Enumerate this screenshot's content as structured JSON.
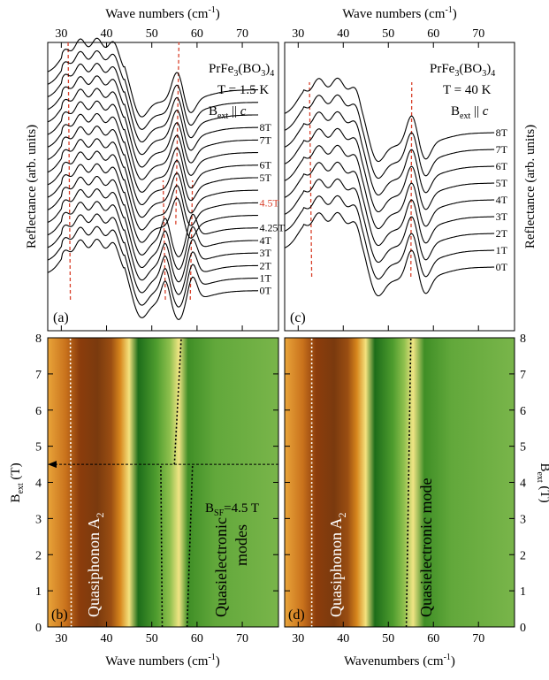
{
  "figure": {
    "xlabel_top": "Wave numbers (cm",
    "xlabel_top_sup": "-1",
    "xlabel_top_close": ")",
    "ylabel_reflectance": "Reflectance (arb. units)",
    "ylabel_field": "B",
    "ylabel_field_sub": "ext",
    "ylabel_field_unit": " (T)",
    "xlabel_bottom_left": "Wave numbers (cm",
    "xlabel_bottom_right": "Wavenumbers (cm",
    "sup_minus1": "-1",
    "close_paren": ")"
  },
  "chart_data": [
    {
      "id": "a",
      "type": "line",
      "panel_label": "(a)",
      "compound_parts": [
        "PrFe",
        "3",
        "(BO",
        "3",
        ")",
        "4"
      ],
      "temperature": "T = 1.5 K",
      "field_prefix": "B",
      "field_sub": "ext",
      "field_mid": " || ",
      "field_axis": "c",
      "xlim": [
        27,
        78
      ],
      "xticks": [
        30,
        40,
        50,
        60,
        70
      ],
      "y_ticks_visible": false,
      "ylabel": "Reflectance (arb. units)",
      "series": [
        {
          "name": "0T",
          "baseline": 0
        },
        {
          "name": "1T",
          "baseline": 1
        },
        {
          "name": "2T",
          "baseline": 2
        },
        {
          "name": "3T",
          "baseline": 3
        },
        {
          "name": "4T",
          "baseline": 4
        },
        {
          "name": "4.25T",
          "baseline": 5
        },
        {
          "name": "4.5T",
          "baseline": 6,
          "highlight": "#d9412b"
        },
        {
          "name": "5T",
          "baseline": 7
        },
        {
          "name": "6T",
          "baseline": 8
        },
        {
          "name": "7T",
          "baseline": 9
        },
        {
          "name": "8T",
          "baseline": 10
        }
      ],
      "extra_traces": 6,
      "guide_lines": [
        {
          "x_low": 32.0,
          "x_high": 31.5,
          "from_series": 0,
          "to_series": 16
        },
        {
          "x_low": 53.0,
          "x_high": 52.5,
          "from_series": 0,
          "to_series": 5
        },
        {
          "x_low": 58.5,
          "x_high": 59.0,
          "from_series": 0,
          "to_series": 5
        },
        {
          "x_low": 55.3,
          "x_high": 56.0,
          "from_series": 6,
          "to_series": 16
        }
      ]
    },
    {
      "id": "c",
      "type": "line",
      "panel_label": "(c)",
      "compound_parts": [
        "PrFe",
        "3",
        "(BO",
        "3",
        ")",
        "4"
      ],
      "temperature": "T = 40 K",
      "field_prefix": "B",
      "field_sub": "ext",
      "field_mid": " || ",
      "field_axis": "c",
      "xlim": [
        27,
        78
      ],
      "xticks": [
        30,
        40,
        50,
        60,
        70
      ],
      "y_ticks_visible": false,
      "ylabel": "Reflectance (arb. units)",
      "series": [
        {
          "name": "0T",
          "baseline": 0
        },
        {
          "name": "1T",
          "baseline": 1
        },
        {
          "name": "2T",
          "baseline": 2
        },
        {
          "name": "3T",
          "baseline": 3
        },
        {
          "name": "4T",
          "baseline": 4
        },
        {
          "name": "5T",
          "baseline": 5
        },
        {
          "name": "6T",
          "baseline": 6
        },
        {
          "name": "7T",
          "baseline": 7
        },
        {
          "name": "8T",
          "baseline": 8
        }
      ],
      "guide_lines": [
        {
          "x_low": 33.0,
          "x_high": 32.5,
          "from_series": 0,
          "to_series": 8
        },
        {
          "x_low": 55.0,
          "x_high": 55.2,
          "from_series": 0,
          "to_series": 8
        }
      ]
    },
    {
      "id": "b",
      "type": "heatmap",
      "panel_label": "(b)",
      "xlim": [
        27,
        78
      ],
      "ylim": [
        0,
        8
      ],
      "xticks": [
        30,
        40,
        50,
        60,
        70
      ],
      "yticks": [
        0,
        1,
        2,
        3,
        4,
        5,
        6,
        7,
        8
      ],
      "xlabel": "Wave numbers (cm-1)",
      "ylabel": "Bext (T)",
      "annotation_prefix": "B",
      "annotation_sub": "SF",
      "annotation_value": "=4.5 T",
      "spin_flip_field": 4.5,
      "label_phonon_main": "Quasiphonon A",
      "label_phonon_sub": "2",
      "label_electronic_1": "Quasielectronic",
      "label_electronic_2": "modes",
      "color_bands": [
        {
          "x": 27,
          "color": "#e9a43a"
        },
        {
          "x": 31,
          "color": "#c9721c"
        },
        {
          "x": 34,
          "color": "#8c3d0c"
        },
        {
          "x": 38,
          "color": "#7a3a0e"
        },
        {
          "x": 41,
          "color": "#9a4e12"
        },
        {
          "x": 43,
          "color": "#d7861c"
        },
        {
          "x": 45,
          "color": "#f4e27e"
        },
        {
          "x": 47,
          "color": "#1d6d1a"
        },
        {
          "x": 51,
          "color": "#4e9c2e"
        },
        {
          "x": 54,
          "color": "#8fc04d"
        },
        {
          "x": 56,
          "color": "#f0e484"
        },
        {
          "x": 58,
          "color": "#3f8e26"
        },
        {
          "x": 64,
          "color": "#62a83b"
        },
        {
          "x": 78,
          "color": "#79b54a"
        }
      ],
      "mode_lines": [
        {
          "style": "white",
          "points": [
            [
              32.2,
              0
            ],
            [
              32.0,
              8
            ]
          ]
        },
        {
          "style": "black",
          "points": [
            [
              55.0,
              4.5
            ],
            [
              56.5,
              8
            ]
          ]
        },
        {
          "style": "black",
          "points": [
            [
              52.3,
              0
            ],
            [
              52.0,
              4.5
            ]
          ]
        },
        {
          "style": "black",
          "points": [
            [
              57.8,
              0
            ],
            [
              59.0,
              4.5
            ]
          ]
        }
      ]
    },
    {
      "id": "d",
      "type": "heatmap",
      "panel_label": "(d)",
      "xlim": [
        27,
        78
      ],
      "ylim": [
        0,
        8
      ],
      "xticks": [
        30,
        40,
        50,
        60,
        70
      ],
      "yticks": [
        0,
        1,
        2,
        3,
        4,
        5,
        6,
        7,
        8
      ],
      "xlabel": "Wavenumbers (cm-1)",
      "ylabel": "Bext (T)",
      "label_phonon_main": "Quasiphonon A",
      "label_phonon_sub": "2",
      "label_electronic_1": "Quasielectronic mode",
      "color_bands": [
        {
          "x": 27,
          "color": "#e9a43a"
        },
        {
          "x": 31,
          "color": "#c9721c"
        },
        {
          "x": 34,
          "color": "#8c3d0c"
        },
        {
          "x": 38,
          "color": "#7a3a0e"
        },
        {
          "x": 41,
          "color": "#9a4e12"
        },
        {
          "x": 43,
          "color": "#d7861c"
        },
        {
          "x": 45,
          "color": "#f4e27e"
        },
        {
          "x": 47,
          "color": "#1d6d1a"
        },
        {
          "x": 51,
          "color": "#4e9c2e"
        },
        {
          "x": 53.5,
          "color": "#8fc04d"
        },
        {
          "x": 55.5,
          "color": "#f0e484"
        },
        {
          "x": 58,
          "color": "#3f8e26"
        },
        {
          "x": 64,
          "color": "#62a83b"
        },
        {
          "x": 78,
          "color": "#79b54a"
        }
      ],
      "mode_lines": [
        {
          "style": "white",
          "points": [
            [
              33.0,
              0
            ],
            [
              33.0,
              8
            ]
          ]
        },
        {
          "style": "black",
          "points": [
            [
              54.0,
              0
            ],
            [
              55.0,
              8
            ]
          ]
        }
      ]
    }
  ]
}
